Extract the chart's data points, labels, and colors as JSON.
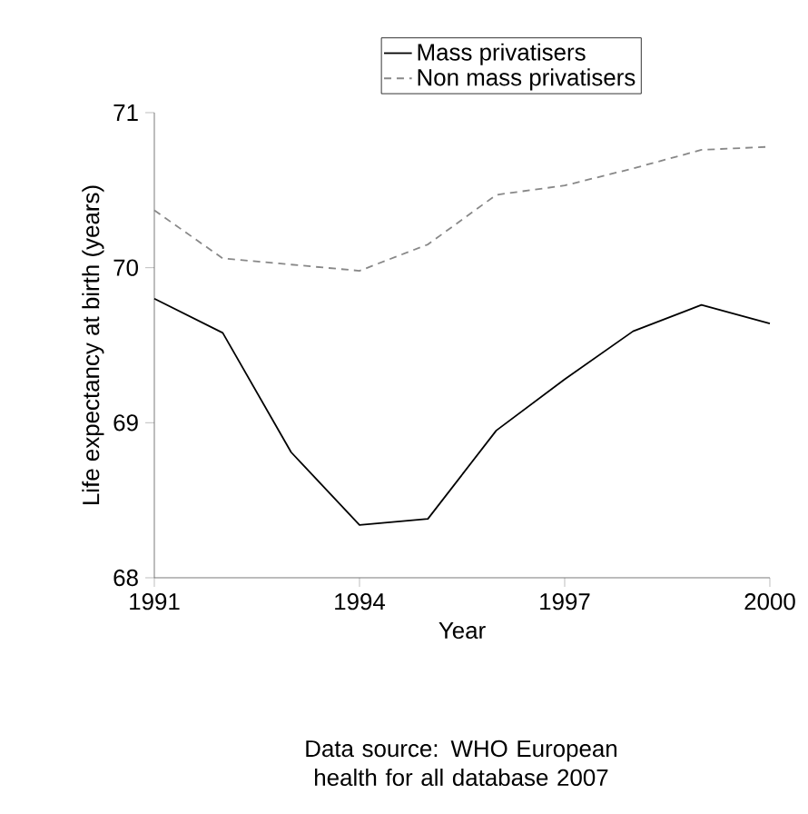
{
  "chart_data": {
    "type": "line",
    "xlabel": "Year",
    "ylabel": "Life expectancy at birth (years)",
    "x": [
      1991,
      1992,
      1993,
      1994,
      1995,
      1996,
      1997,
      1998,
      1999,
      2000
    ],
    "series": [
      {
        "name": "Mass privatisers",
        "color": "#000000",
        "line_style": "solid",
        "values": [
          69.8,
          69.58,
          68.81,
          68.34,
          68.38,
          68.95,
          69.28,
          69.59,
          69.76,
          69.64
        ]
      },
      {
        "name": "Non mass privatisers",
        "color": "#888888",
        "line_style": "dashed",
        "values": [
          70.37,
          70.06,
          70.02,
          69.98,
          70.15,
          70.47,
          70.53,
          70.64,
          70.76,
          70.78
        ]
      }
    ],
    "xlim": [
      1991,
      2000
    ],
    "ylim": [
      68,
      71
    ],
    "xticks": [
      1991,
      1994,
      1997,
      2000
    ],
    "yticks": [
      68,
      69,
      70,
      71
    ],
    "grid": false,
    "legend": "top",
    "marker": "none",
    "annotations": [
      "Data source: WHO European health for all database 2007"
    ]
  }
}
